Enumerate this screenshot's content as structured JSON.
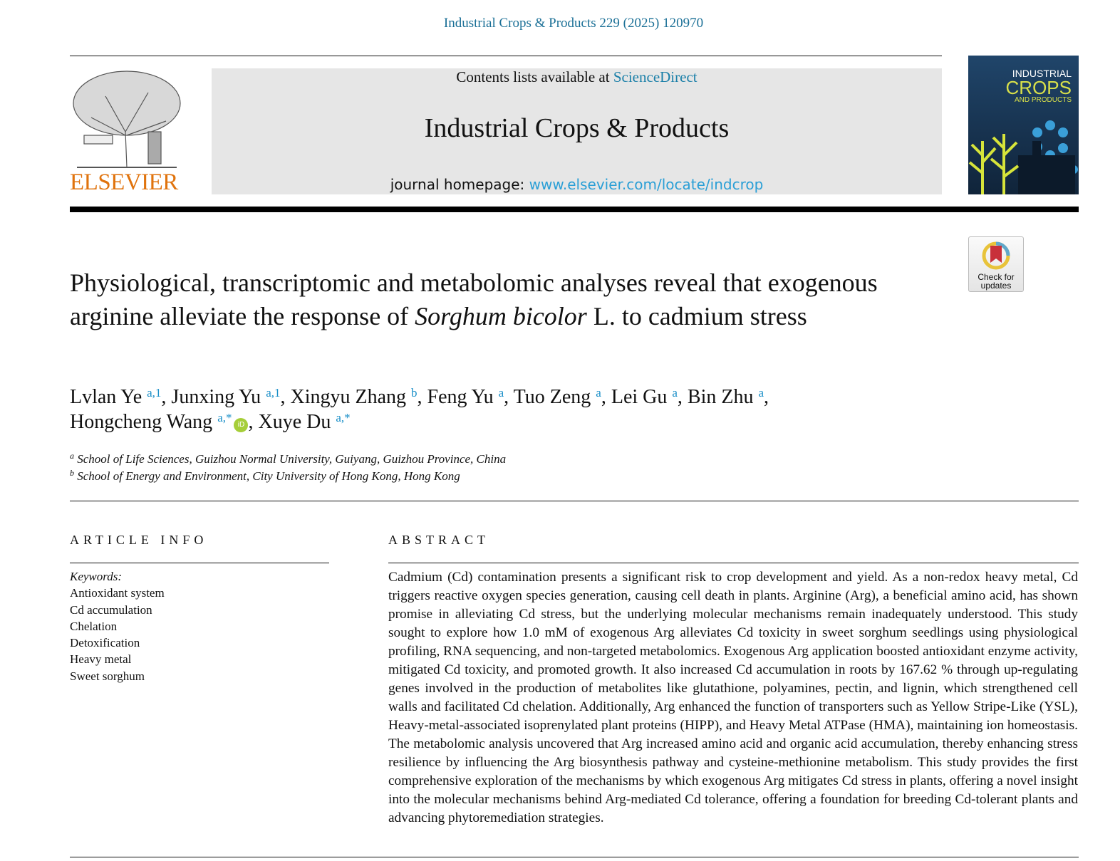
{
  "header": {
    "journal_ref": "Industrial Crops & Products 229 (2025) 120970",
    "contents_prefix": "Contents lists available at ",
    "sciencedirect": "ScienceDirect",
    "journal_title": "Industrial Crops & Products",
    "homepage_prefix": "journal homepage: ",
    "homepage_url": "www.elsevier.com/locate/indcrop",
    "publisher": "ELSEVIER",
    "cover_line1": "INDUSTRIAL",
    "cover_line2": "CROPS",
    "cover_line3": "AND PRODUCTS",
    "check_updates": "Check for updates"
  },
  "article": {
    "title_part1": "Physiological, transcriptomic and metabolomic analyses reveal that exogenous arginine alleviate the response of ",
    "title_italic": "Sorghum bicolor",
    "title_part2": " L. to cadmium stress",
    "authors": [
      {
        "name": "Lvlan Ye",
        "sup": "a,1"
      },
      {
        "name": "Junxing Yu",
        "sup": "a,1"
      },
      {
        "name": "Xingyu Zhang",
        "sup": "b"
      },
      {
        "name": "Feng Yu",
        "sup": "a"
      },
      {
        "name": "Tuo Zeng",
        "sup": "a"
      },
      {
        "name": "Lei Gu",
        "sup": "a"
      },
      {
        "name": "Bin Zhu",
        "sup": "a"
      },
      {
        "name": "Hongcheng Wang",
        "sup": "a,*"
      },
      {
        "name": "Xuye Du",
        "sup": "a,*"
      }
    ],
    "affiliations": [
      {
        "mark": "a",
        "text": "School of Life Sciences, Guizhou Normal University, Guiyang, Guizhou Province, China"
      },
      {
        "mark": "b",
        "text": "School of Energy and Environment, City University of Hong Kong, Hong Kong"
      }
    ]
  },
  "info": {
    "heading": "ARTICLE INFO",
    "keywords_label": "Keywords:",
    "keywords": [
      "Antioxidant system",
      "Cd accumulation",
      "Chelation",
      "Detoxification",
      "Heavy metal",
      "Sweet sorghum"
    ]
  },
  "abstract": {
    "heading": "ABSTRACT",
    "text": "Cadmium (Cd) contamination presents a significant risk to crop development and yield. As a non-redox heavy metal, Cd triggers reactive oxygen species generation, causing cell death in plants. Arginine (Arg), a beneficial amino acid, has shown promise in alleviating Cd stress, but the underlying molecular mechanisms remain inadequately understood. This study sought to explore how 1.0 mM of exogenous Arg alleviates Cd toxicity in sweet sorghum seedlings using physiological profiling, RNA sequencing, and non-targeted metabolomics. Exogenous Arg application boosted antioxidant enzyme activity, mitigated Cd toxicity, and promoted growth. It also increased Cd accumulation in roots by 167.62 % through up-regulating genes involved in the production of metabolites like glutathione, polyamines, pectin, and lignin, which strengthened cell walls and facilitated Cd chelation. Additionally, Arg enhanced the function of transporters such as Yellow Stripe-Like (YSL), Heavy-metal-associated isoprenylated plant proteins (HIPP), and Heavy Metal ATPase (HMA), maintaining ion homeostasis. The metabolomic analysis uncovered that Arg increased amino acid and organic acid accumulation, thereby enhancing stress resilience by influencing the Arg biosynthesis pathway and cysteine-methionine metabolism. This study provides the first comprehensive exploration of the mechanisms by which exogenous Arg mitigates Cd stress in plants, offering a novel insight into the molecular mechanisms behind Arg-mediated Cd tolerance, offering a foundation for breeding Cd-tolerant plants and advancing phytoremediation strategies."
  }
}
